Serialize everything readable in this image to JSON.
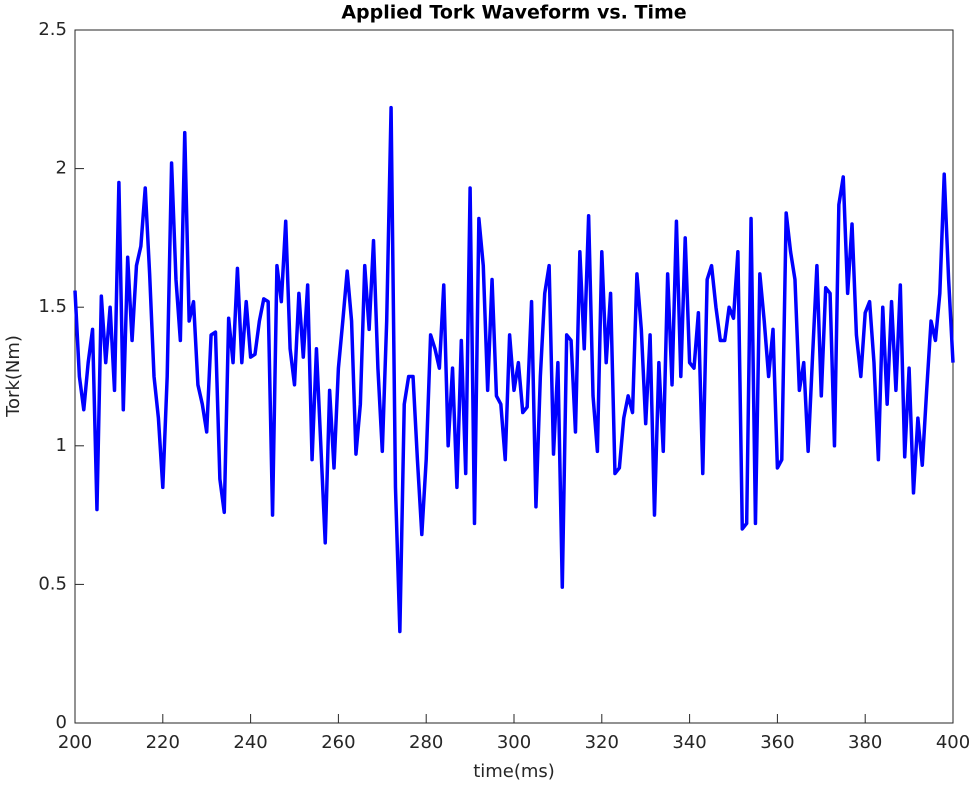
{
  "chart_data": {
    "type": "line",
    "title": "Applied Tork Waveform vs. Time",
    "xlabel": "time(ms)",
    "ylabel": "Tork(Nm)",
    "x": [
      200,
      201,
      202,
      203,
      204,
      205,
      206,
      207,
      208,
      209,
      210,
      211,
      212,
      213,
      214,
      215,
      216,
      217,
      218,
      219,
      220,
      221,
      222,
      223,
      224,
      225,
      226,
      227,
      228,
      229,
      230,
      231,
      232,
      233,
      234,
      235,
      236,
      237,
      238,
      239,
      240,
      241,
      242,
      243,
      244,
      245,
      246,
      247,
      248,
      249,
      250,
      251,
      252,
      253,
      254,
      255,
      256,
      257,
      258,
      259,
      260,
      261,
      262,
      263,
      264,
      265,
      266,
      267,
      268,
      269,
      270,
      271,
      272,
      273,
      274,
      275,
      276,
      277,
      278,
      279,
      280,
      281,
      282,
      283,
      284,
      285,
      286,
      287,
      288,
      289,
      290,
      291,
      292,
      293,
      294,
      295,
      296,
      297,
      298,
      299,
      300,
      301,
      302,
      303,
      304,
      305,
      306,
      307,
      308,
      309,
      310,
      311,
      312,
      313,
      314,
      315,
      316,
      317,
      318,
      319,
      320,
      321,
      322,
      323,
      324,
      325,
      326,
      327,
      328,
      329,
      330,
      331,
      332,
      333,
      334,
      335,
      336,
      337,
      338,
      339,
      340,
      341,
      342,
      343,
      344,
      345,
      346,
      347,
      348,
      349,
      350,
      351,
      352,
      353,
      354,
      355,
      356,
      357,
      358,
      359,
      360,
      361,
      362,
      363,
      364,
      365,
      366,
      367,
      368,
      369,
      370,
      371,
      372,
      373,
      374,
      375,
      376,
      377,
      378,
      379,
      380,
      381,
      382,
      383,
      384,
      385,
      386,
      387,
      388,
      389,
      390,
      391,
      392,
      393,
      394,
      395,
      396,
      397,
      398,
      399,
      400
    ],
    "series": [
      {
        "name": "Tork",
        "color": "#0000ff",
        "values": [
          1.56,
          1.25,
          1.13,
          1.3,
          1.42,
          0.77,
          1.54,
          1.3,
          1.5,
          1.2,
          1.95,
          1.13,
          1.68,
          1.38,
          1.65,
          1.72,
          1.93,
          1.62,
          1.25,
          1.1,
          0.85,
          1.25,
          2.02,
          1.6,
          1.38,
          2.13,
          1.45,
          1.52,
          1.22,
          1.15,
          1.05,
          1.4,
          1.41,
          0.88,
          0.76,
          1.46,
          1.3,
          1.64,
          1.3,
          1.52,
          1.32,
          1.33,
          1.45,
          1.53,
          1.52,
          0.75,
          1.65,
          1.52,
          1.81,
          1.35,
          1.22,
          1.55,
          1.32,
          1.58,
          0.95,
          1.35,
          1.0,
          0.65,
          1.2,
          0.92,
          1.28,
          1.45,
          1.63,
          1.45,
          0.97,
          1.15,
          1.65,
          1.42,
          1.74,
          1.28,
          0.98,
          1.45,
          2.22,
          0.85,
          0.33,
          1.15,
          1.25,
          1.25,
          0.95,
          0.68,
          0.95,
          1.4,
          1.35,
          1.28,
          1.58,
          1.0,
          1.28,
          0.85,
          1.38,
          0.9,
          1.93,
          0.72,
          1.82,
          1.65,
          1.2,
          1.6,
          1.18,
          1.15,
          0.95,
          1.4,
          1.2,
          1.3,
          1.12,
          1.14,
          1.52,
          0.78,
          1.25,
          1.55,
          1.65,
          0.97,
          1.3,
          0.49,
          1.4,
          1.38,
          1.05,
          1.7,
          1.35,
          1.83,
          1.18,
          0.98,
          1.7,
          1.3,
          1.55,
          0.9,
          0.92,
          1.1,
          1.18,
          1.12,
          1.62,
          1.42,
          1.08,
          1.4,
          0.75,
          1.3,
          0.98,
          1.62,
          1.22,
          1.81,
          1.25,
          1.75,
          1.3,
          1.28,
          1.48,
          0.9,
          1.6,
          1.65,
          1.5,
          1.38,
          1.38,
          1.5,
          1.46,
          1.7,
          0.7,
          0.72,
          1.82,
          0.72,
          1.62,
          1.45,
          1.25,
          1.42,
          0.92,
          0.95,
          1.84,
          1.7,
          1.6,
          1.2,
          1.3,
          0.98,
          1.32,
          1.65,
          1.18,
          1.57,
          1.55,
          1.0,
          1.87,
          1.97,
          1.55,
          1.8,
          1.4,
          1.25,
          1.48,
          1.52,
          1.3,
          0.95,
          1.5,
          1.15,
          1.52,
          1.2,
          1.58,
          0.96,
          1.28,
          0.83,
          1.1,
          0.93,
          1.2,
          1.45,
          1.38,
          1.55,
          1.98,
          1.6,
          1.3
        ]
      }
    ],
    "xlim": [
      200,
      400
    ],
    "xticks": [
      200,
      220,
      240,
      260,
      280,
      300,
      320,
      340,
      360,
      380,
      400
    ],
    "ylim": [
      0,
      2.5
    ],
    "yticks": [
      0,
      0.5,
      1,
      1.5,
      2,
      2.5
    ],
    "grid": false
  }
}
